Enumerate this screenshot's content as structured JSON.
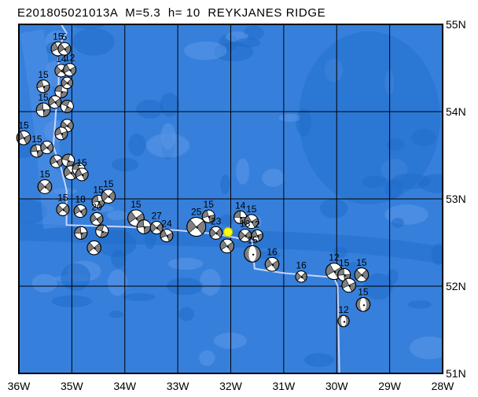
{
  "map": {
    "title": "E201805021013A  M=5.3  h= 10  REYKJANES RIDGE",
    "lon_range": [
      -36,
      -28
    ],
    "lat_range": [
      51,
      55
    ],
    "lon_ticks": [
      {
        "v": -36,
        "label": "36W"
      },
      {
        "v": -35,
        "label": "35W"
      },
      {
        "v": -34,
        "label": "34W"
      },
      {
        "v": -33,
        "label": "33W"
      },
      {
        "v": -32,
        "label": "32W"
      },
      {
        "v": -31,
        "label": "31W"
      },
      {
        "v": -30,
        "label": "30W"
      },
      {
        "v": -29,
        "label": "29W"
      },
      {
        "v": -28,
        "label": "28W"
      }
    ],
    "lat_ticks": [
      {
        "v": 55,
        "label": "55N"
      },
      {
        "v": 54,
        "label": "54N"
      },
      {
        "v": 53,
        "label": "53N"
      },
      {
        "v": 52,
        "label": "52N"
      },
      {
        "v": 51,
        "label": "51N"
      }
    ],
    "colors": {
      "ocean": "#3680dc",
      "deep": "#1f6cc9",
      "shallow": "#5b97e8",
      "plate_boundary": "#c8d4ff",
      "compressional": "#808080",
      "dilatational": "#ffffff",
      "epicenter": "#ffff00"
    },
    "epicenter": {
      "lon": -32.05,
      "lat": 52.62
    },
    "plate_boundary": [
      [
        -35.2,
        55
      ],
      [
        -35.1,
        54.9
      ],
      [
        -35.25,
        54.75
      ],
      [
        -35.25,
        54.3
      ],
      [
        -35.3,
        54.0
      ],
      [
        -35.35,
        53.6
      ],
      [
        -35.2,
        53.35
      ],
      [
        -35.1,
        53.1
      ],
      [
        -35.1,
        52.7
      ],
      [
        -34.0,
        52.68
      ],
      [
        -33.0,
        52.64
      ],
      [
        -32.3,
        52.6
      ],
      [
        -31.6,
        52.52
      ],
      [
        -31.55,
        52.2
      ],
      [
        -31.0,
        52.15
      ],
      [
        -30.05,
        52.1
      ],
      [
        -29.98,
        52.0
      ],
      [
        -29.95,
        51.0
      ]
    ],
    "events": [
      {
        "lon": -35.26,
        "lat": 54.72,
        "depth": "15",
        "mw": 5.4,
        "strike": 20
      },
      {
        "lon": -35.14,
        "lat": 54.72,
        "depth": "5",
        "mw": 5.3,
        "strike": 10
      },
      {
        "lon": -35.2,
        "lat": 54.47,
        "depth": "14",
        "mw": 5.3,
        "strike": 0
      },
      {
        "lon": -35.04,
        "lat": 54.48,
        "depth": "12",
        "mw": 5.3,
        "strike": 15
      },
      {
        "lon": -35.54,
        "lat": 54.29,
        "depth": "15",
        "mw": 5.3,
        "strike": 30
      },
      {
        "lon": -35.2,
        "lat": 54.23,
        "depth": "",
        "mw": 5.3,
        "strike": 50
      },
      {
        "lon": -35.09,
        "lat": 54.33,
        "depth": "",
        "mw": 5.2,
        "strike": 0
      },
      {
        "lon": -35.54,
        "lat": 54.02,
        "depth": "15",
        "mw": 5.4,
        "strike": 40
      },
      {
        "lon": -35.32,
        "lat": 54.11,
        "depth": "",
        "mw": 5.3,
        "strike": 10
      },
      {
        "lon": -35.09,
        "lat": 54.06,
        "depth": "",
        "mw": 5.3,
        "strike": 70
      },
      {
        "lon": -35.09,
        "lat": 53.84,
        "depth": "",
        "mw": 5.3,
        "strike": 0
      },
      {
        "lon": -35.2,
        "lat": 53.75,
        "depth": "",
        "mw": 5.3,
        "strike": 25
      },
      {
        "lon": -35.91,
        "lat": 53.7,
        "depth": "15",
        "mw": 5.4,
        "strike": 20
      },
      {
        "lon": -35.66,
        "lat": 53.55,
        "depth": "15",
        "mw": 5.3,
        "strike": 35
      },
      {
        "lon": -35.47,
        "lat": 53.59,
        "depth": "",
        "mw": 5.3,
        "strike": 5
      },
      {
        "lon": -35.29,
        "lat": 53.43,
        "depth": "",
        "mw": 5.3,
        "strike": 15
      },
      {
        "lon": -35.07,
        "lat": 53.44,
        "depth": "",
        "mw": 5.3,
        "strike": 60
      },
      {
        "lon": -35.51,
        "lat": 53.14,
        "depth": "15",
        "mw": 5.4,
        "strike": 0
      },
      {
        "lon": -35.02,
        "lat": 53.3,
        "depth": "",
        "mw": 5.4,
        "strike": 10
      },
      {
        "lon": -34.87,
        "lat": 53.34,
        "depth": "",
        "mw": 5.3,
        "strike": 45
      },
      {
        "lon": -34.81,
        "lat": 53.28,
        "depth": "15",
        "mw": 5.3,
        "strike": 20
      },
      {
        "lon": -35.17,
        "lat": 52.88,
        "depth": "15",
        "mw": 5.3,
        "strike": 0
      },
      {
        "lon": -34.84,
        "lat": 52.86,
        "depth": "18",
        "mw": 5.3,
        "strike": 15
      },
      {
        "lon": -34.5,
        "lat": 52.97,
        "depth": "15",
        "mw": 5.3,
        "strike": 35
      },
      {
        "lon": -34.31,
        "lat": 53.03,
        "depth": "15",
        "mw": 5.4,
        "strike": 0
      },
      {
        "lon": -34.83,
        "lat": 52.61,
        "depth": "",
        "mw": 5.3,
        "strike": 40
      },
      {
        "lon": -34.53,
        "lat": 52.77,
        "depth": "20",
        "mw": 5.3,
        "strike": 10
      },
      {
        "lon": -34.43,
        "lat": 52.63,
        "depth": "",
        "mw": 5.3,
        "strike": 60
      },
      {
        "lon": -34.58,
        "lat": 52.44,
        "depth": "",
        "mw": 5.4,
        "strike": 5
      },
      {
        "lon": -33.79,
        "lat": 52.78,
        "depth": "15",
        "mw": 5.6,
        "strike": 10
      },
      {
        "lon": -33.64,
        "lat": 52.68,
        "depth": "",
        "mw": 5.4,
        "strike": 40
      },
      {
        "lon": -33.4,
        "lat": 52.67,
        "depth": "27",
        "mw": 5.3,
        "strike": 0
      },
      {
        "lon": -33.21,
        "lat": 52.58,
        "depth": "24",
        "mw": 5.3,
        "strike": 20
      },
      {
        "lon": -32.65,
        "lat": 52.68,
        "depth": "25",
        "mw": 5.8,
        "strike": 5
      },
      {
        "lon": -32.42,
        "lat": 52.8,
        "depth": "15",
        "mw": 5.3,
        "strike": 30
      },
      {
        "lon": -32.28,
        "lat": 52.61,
        "depth": "23",
        "mw": 5.3,
        "strike": 0
      },
      {
        "lon": -32.07,
        "lat": 52.46,
        "depth": "",
        "mw": 5.4,
        "strike": 10
      },
      {
        "lon": -31.82,
        "lat": 52.79,
        "depth": "14",
        "mw": 5.3,
        "strike": 45
      },
      {
        "lon": -31.61,
        "lat": 52.74,
        "depth": "15",
        "mw": 5.4,
        "strike": 15
      },
      {
        "lon": -31.73,
        "lat": 52.58,
        "depth": "18",
        "mw": 5.3,
        "strike": 0
      },
      {
        "lon": -31.5,
        "lat": 52.58,
        "depth": "2",
        "mw": 5.2,
        "strike": 25
      },
      {
        "lon": -31.59,
        "lat": 52.37,
        "depth": "15",
        "mw": 5.6,
        "strike": 90
      },
      {
        "lon": -31.22,
        "lat": 52.25,
        "depth": "16",
        "mw": 5.4,
        "strike": 10
      },
      {
        "lon": -30.67,
        "lat": 52.11,
        "depth": "16",
        "mw": 5.2,
        "strike": 0
      },
      {
        "lon": -30.05,
        "lat": 52.17,
        "depth": "12",
        "mw": 5.6,
        "strike": 15
      },
      {
        "lon": -29.86,
        "lat": 52.13,
        "depth": "15",
        "mw": 5.3,
        "strike": 40
      },
      {
        "lon": -29.53,
        "lat": 52.13,
        "depth": "15",
        "mw": 5.4,
        "strike": 0
      },
      {
        "lon": -29.77,
        "lat": 52.01,
        "depth": "",
        "mw": 5.4,
        "strike": 20
      },
      {
        "lon": -29.5,
        "lat": 51.79,
        "depth": "15",
        "mw": 5.4,
        "strike": 90
      },
      {
        "lon": -29.87,
        "lat": 51.6,
        "depth": "12",
        "mw": 5.2,
        "strike": 90
      }
    ]
  }
}
